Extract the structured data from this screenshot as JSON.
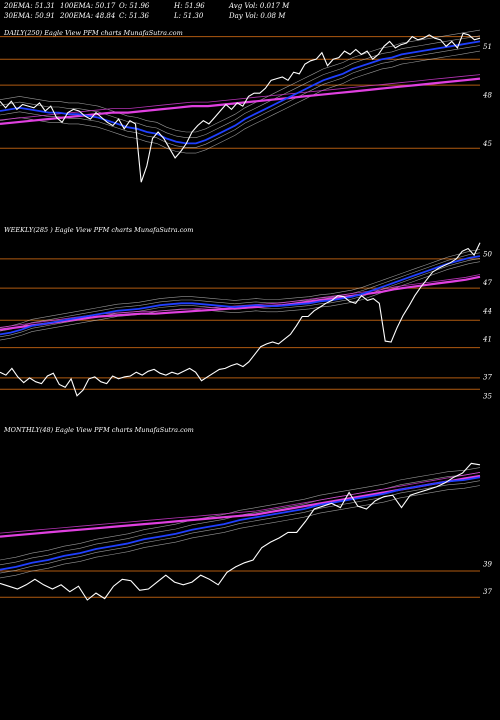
{
  "header": {
    "row1": [
      "20EMA: 51.31",
      "100EMA: 50.17",
      "O: 51.96",
      "H: 51.96",
      "Avg Vol: 0.017 M"
    ],
    "row2": [
      "30EMA: 50.91",
      "200EMA: 48.84",
      "C: 51.36",
      "L: 51.30",
      "Day Vol: 0.08 M"
    ]
  },
  "colors": {
    "background": "#000000",
    "price": "#ffffff",
    "ema_fast": "#1f3fff",
    "ema_slow": "#e040e0",
    "support_line": "#b05a10",
    "ema_thin": "#c8c8c8"
  },
  "chart_data": [
    {
      "type": "line",
      "title": "DAILY(250) Eagle   View  PFM charts MunafaSutra.com",
      "yticks": [
        51,
        48,
        45
      ],
      "levels": [
        51.6,
        50.2,
        48.6,
        44.7
      ],
      "series": [
        {
          "role": "price",
          "values": [
            47.6,
            47.2,
            47.6,
            47.1,
            47.4,
            47.3,
            47.2,
            47.5,
            47.0,
            47.3,
            46.6,
            46.3,
            46.9,
            47.1,
            47.0,
            46.7,
            46.5,
            46.9,
            46.6,
            46.3,
            46.1,
            46.5,
            45.9,
            46.4,
            46.2,
            42.6,
            43.6,
            45.3,
            45.7,
            45.3,
            44.7,
            44.1,
            44.5,
            45.0,
            45.7,
            46.1,
            46.4,
            46.2,
            46.6,
            47.0,
            47.4,
            47.1,
            47.5,
            47.3,
            47.9,
            48.1,
            48.1,
            48.4,
            48.9,
            49.0,
            49.1,
            48.9,
            49.4,
            49.3,
            49.9,
            50.1,
            50.2,
            50.6,
            49.8,
            50.2,
            50.3,
            50.7,
            50.5,
            50.8,
            50.5,
            50.7,
            50.2,
            50.5,
            51.0,
            51.3,
            50.9,
            51.1,
            51.2,
            51.6,
            51.4,
            51.5,
            51.7,
            51.5,
            51.4,
            51.0,
            51.3,
            50.9,
            51.8,
            51.7,
            51.4,
            51.5
          ]
        },
        {
          "role": "ema",
          "values": [
            47.0,
            47.1,
            47.2,
            47.1,
            47.0,
            46.9,
            46.9,
            46.8,
            46.8,
            46.7,
            46.6,
            46.4,
            46.2,
            46.0,
            45.9,
            45.7,
            45.6,
            45.3,
            45.1,
            45.0,
            45.0,
            45.2,
            45.5,
            45.8,
            46.1,
            46.5,
            46.8,
            47.1,
            47.4,
            47.7,
            48.0,
            48.3,
            48.6,
            48.9,
            49.1,
            49.3,
            49.6,
            49.8,
            50.0,
            50.2,
            50.3,
            50.5,
            50.6,
            50.7,
            50.8,
            50.9,
            51.0,
            51.1,
            51.2,
            51.3
          ]
        },
        {
          "role": "sma",
          "values": [
            46.2,
            46.3,
            46.4,
            46.5,
            46.6,
            46.7,
            46.8,
            46.9,
            46.9,
            47.0,
            47.1,
            47.2,
            47.3,
            47.3,
            47.4,
            47.5,
            47.6,
            47.7,
            47.8,
            47.9,
            48.0,
            48.1,
            48.2,
            48.3,
            48.4,
            48.5,
            48.6,
            48.7,
            48.8,
            48.9,
            49.0
          ]
        }
      ]
    },
    {
      "type": "line",
      "title": "WEEKLY(285                    ) Eagle   View  PFM charts MunafaSutra.com",
      "yticks": [
        50,
        47,
        44,
        41,
        37,
        35
      ],
      "levels": [
        49.5,
        46.4,
        43.0,
        40.1,
        36.9,
        35.7
      ],
      "series": [
        {
          "role": "price",
          "values": [
            37.5,
            37.2,
            37.9,
            37.0,
            36.4,
            36.9,
            36.5,
            36.3,
            37.1,
            37.4,
            36.2,
            35.9,
            36.8,
            35.0,
            35.6,
            36.8,
            37.0,
            36.5,
            36.3,
            37.1,
            36.8,
            37.0,
            37.1,
            37.5,
            37.2,
            37.6,
            37.8,
            37.4,
            37.2,
            37.5,
            37.3,
            37.6,
            37.9,
            37.5,
            36.6,
            37.0,
            37.4,
            37.8,
            37.9,
            38.2,
            38.4,
            38.1,
            38.6,
            39.4,
            40.2,
            40.5,
            40.7,
            40.5,
            41.0,
            41.5,
            42.4,
            43.4,
            43.4,
            44.0,
            44.4,
            44.8,
            45.1,
            45.6,
            45.5,
            45.0,
            44.8,
            45.6,
            45.1,
            45.3,
            44.8,
            40.8,
            40.7,
            42.2,
            43.5,
            44.5,
            45.6,
            46.5,
            47.3,
            48.1,
            48.5,
            48.8,
            49.1,
            49.5,
            50.3,
            50.6,
            49.9,
            51.2
          ]
        },
        {
          "role": "ema",
          "values": [
            41.5,
            41.7,
            42.0,
            42.4,
            42.6,
            42.8,
            43.0,
            43.2,
            43.4,
            43.6,
            43.8,
            44.0,
            44.1,
            44.2,
            44.4,
            44.6,
            44.7,
            44.8,
            44.8,
            44.7,
            44.6,
            44.5,
            44.4,
            44.5,
            44.6,
            44.5,
            44.5,
            44.6,
            44.7,
            44.8,
            45.0,
            45.1,
            45.3,
            45.5,
            45.8,
            46.2,
            46.6,
            47.0,
            47.4,
            47.8,
            48.2,
            48.6,
            49.0,
            49.3,
            49.6,
            49.8
          ]
        },
        {
          "role": "sma",
          "values": [
            42.0,
            42.2,
            42.4,
            42.6,
            42.8,
            43.0,
            43.2,
            43.4,
            43.5,
            43.6,
            43.7,
            43.7,
            43.8,
            43.9,
            44.0,
            44.1,
            44.2,
            44.3,
            44.4,
            44.5,
            44.6,
            44.8,
            45.0,
            45.2,
            45.4,
            45.6,
            45.8,
            46.0,
            46.3,
            46.5,
            46.7,
            46.9,
            47.1,
            47.3,
            47.6
          ]
        }
      ]
    },
    {
      "type": "line",
      "title": "MONTHLY(48) Eagle   View  PFM charts MunafaSutra.com",
      "yticks": [
        39,
        37
      ],
      "levels": [
        38.5,
        36.6
      ],
      "series": [
        {
          "role": "price",
          "values": [
            37.6,
            37.4,
            37.2,
            37.5,
            37.9,
            37.5,
            37.2,
            37.5,
            37.0,
            37.4,
            36.4,
            36.9,
            36.5,
            37.4,
            37.9,
            37.8,
            37.1,
            37.2,
            37.7,
            38.2,
            37.7,
            37.5,
            37.7,
            38.2,
            37.9,
            37.5,
            38.4,
            38.8,
            39.1,
            39.3,
            40.2,
            40.6,
            40.9,
            41.3,
            41.3,
            42.1,
            43.0,
            43.2,
            43.4,
            43.1,
            44.2,
            43.2,
            43.0,
            43.6,
            43.9,
            44.0,
            43.1,
            44.0,
            44.2,
            44.4,
            44.6,
            44.9,
            45.3,
            45.6,
            46.3,
            46.2
          ]
        },
        {
          "role": "ema",
          "values": [
            38.6,
            38.8,
            39.1,
            39.3,
            39.6,
            39.8,
            40.1,
            40.3,
            40.5,
            40.8,
            41.0,
            41.2,
            41.5,
            41.7,
            41.9,
            42.2,
            42.4,
            42.6,
            42.8,
            43.0,
            43.3,
            43.5,
            43.7,
            43.9,
            44.1,
            44.4,
            44.6,
            44.8,
            45.0,
            45.1,
            45.3
          ]
        },
        {
          "role": "sma",
          "values": [
            41.0,
            41.1,
            41.2,
            41.3,
            41.4,
            41.5,
            41.6,
            41.7,
            41.8,
            41.9,
            42.0,
            42.1,
            42.2,
            42.3,
            42.4,
            42.5,
            42.6,
            42.8,
            43.0,
            43.2,
            43.4,
            43.6,
            43.8,
            44.0,
            44.2,
            44.4,
            44.6,
            44.8,
            45.0,
            45.2,
            45.4
          ]
        }
      ]
    }
  ]
}
